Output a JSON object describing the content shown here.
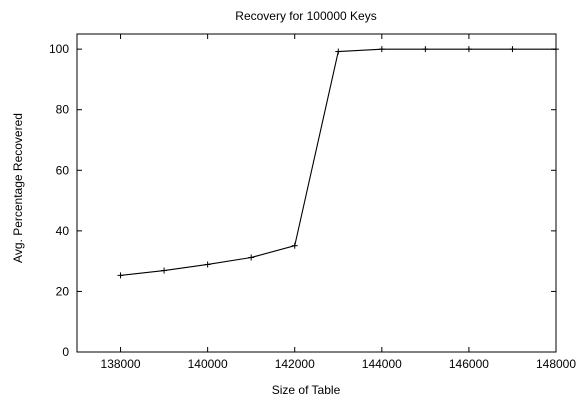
{
  "chart_data": {
    "type": "line",
    "title": "Recovery for 100000 Keys",
    "xlabel": "Size of Table",
    "ylabel": "Avg. Percentage Recovered",
    "xlim": [
      137000,
      148000
    ],
    "ylim": [
      0,
      105
    ],
    "xticks": [
      138000,
      140000,
      142000,
      144000,
      146000,
      148000
    ],
    "yticks": [
      0,
      20,
      40,
      60,
      80,
      100
    ],
    "grid": false,
    "series": [
      {
        "marker": "plus",
        "color": "#000000",
        "x": [
          138000,
          139000,
          140000,
          141000,
          142000,
          143000,
          144000,
          145000,
          146000,
          147000,
          148000
        ],
        "y": [
          25.3,
          26.9,
          28.9,
          31.2,
          35.1,
          99.2,
          100,
          100,
          100,
          100,
          100
        ]
      }
    ]
  }
}
